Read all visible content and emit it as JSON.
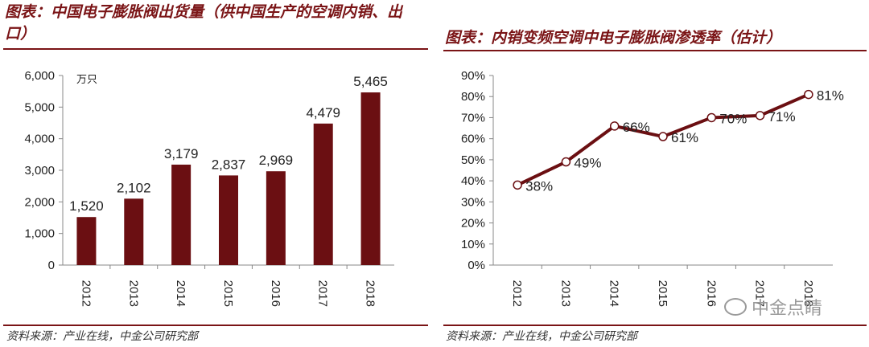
{
  "left": {
    "title": "图表：中国电子膨胀阀出货量（供中国生产的空调内销、出口）",
    "source": "资料来源：产业在线，中金公司研究部"
  },
  "right": {
    "title": "图表：内销变频空调中电子膨胀阀渗透率（估计）",
    "source": "资料来源：产业在线，中金公司研究部"
  },
  "watermark": {
    "text": "中金点睛",
    "icon": "wechat-icon"
  },
  "colors": {
    "accent": "#7a1416",
    "bar": "#6b0f12",
    "line": "#6b0f12"
  },
  "chart_data": [
    {
      "type": "bar",
      "title": "图表：中国电子膨胀阀出货量（供中国生产的空调内销、出口）",
      "unit_label": "万只",
      "categories": [
        "2012",
        "2013",
        "2014",
        "2015",
        "2016",
        "2017",
        "2018"
      ],
      "values": [
        1520,
        2102,
        3179,
        2837,
        2969,
        4479,
        5465
      ],
      "value_labels": [
        "1,520",
        "2,102",
        "3,179",
        "2,837",
        "2,969",
        "4,479",
        "5,465"
      ],
      "ylim": [
        0,
        6000
      ],
      "yticks": [
        0,
        1000,
        2000,
        3000,
        4000,
        5000,
        6000
      ],
      "ytick_labels": [
        "0",
        "1,000",
        "2,000",
        "3,000",
        "4,000",
        "5,000",
        "6,000"
      ],
      "grid": false,
      "xlabel": "",
      "ylabel": ""
    },
    {
      "type": "line",
      "title": "图表：内销变频空调中电子膨胀阀渗透率（估计）",
      "categories": [
        "2012",
        "2013",
        "2014",
        "2015",
        "2016",
        "2017",
        "2018"
      ],
      "values": [
        38,
        49,
        66,
        61,
        70,
        71,
        81
      ],
      "value_labels": [
        "38%",
        "49%",
        "66%",
        "61%",
        "70%",
        "71%",
        "81%"
      ],
      "ylim": [
        0,
        90
      ],
      "yticks": [
        0,
        10,
        20,
        30,
        40,
        50,
        60,
        70,
        80,
        90
      ],
      "ytick_labels": [
        "0%",
        "10%",
        "20%",
        "30%",
        "40%",
        "50%",
        "60%",
        "70%",
        "80%",
        "90%"
      ],
      "grid": false,
      "xlabel": "",
      "ylabel": ""
    }
  ]
}
